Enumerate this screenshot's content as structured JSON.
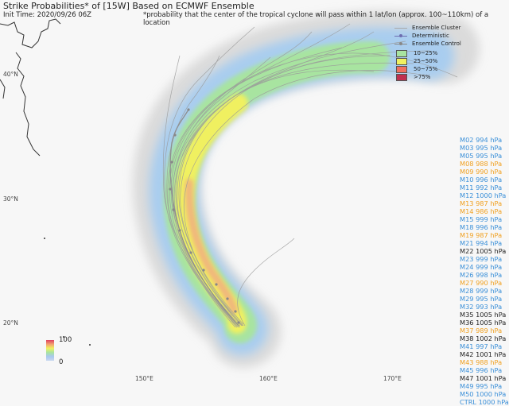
{
  "title": "Strike Probabilities* of [15W] Based on ECMWF Ensemble",
  "init_time": "Init Time: 2020/09/26 06Z",
  "footnote": "*probability that the center of the tropical cyclone will pass within 1 lat/lon (approx. 100~110km) of a location",
  "lat_labels": [
    "40°N",
    "30°N",
    "20°N"
  ],
  "lon_labels": [
    "150°E",
    "160°E",
    "170°E"
  ],
  "legend": {
    "lines": [
      "Ensemble Cluster",
      "Deterministic",
      "Ensemble Control"
    ],
    "bins": [
      {
        "label": "10~25%",
        "color": "#a8e4a0"
      },
      {
        "label": "25~50%",
        "color": "#f0f060"
      },
      {
        "label": "50~75%",
        "color": "#f07060"
      },
      {
        "label": ">75%",
        "color": "#c03050"
      }
    ]
  },
  "colorbar": {
    "max": "100",
    "min": "0"
  },
  "members": [
    {
      "text": "M02 994 hPa",
      "color": "#3a8fd8"
    },
    {
      "text": "M03 995 hPa",
      "color": "#3a8fd8"
    },
    {
      "text": "M05 995 hPa",
      "color": "#3a8fd8"
    },
    {
      "text": "M08 988 hPa",
      "color": "#f0a020"
    },
    {
      "text": "M09 990 hPa",
      "color": "#f0a020"
    },
    {
      "text": "M10 996 hPa",
      "color": "#3a8fd8"
    },
    {
      "text": "M11 992 hPa",
      "color": "#3a8fd8"
    },
    {
      "text": "M12 1000 hPa",
      "color": "#3a8fd8"
    },
    {
      "text": "M13 987 hPa",
      "color": "#f0a020"
    },
    {
      "text": "M14 986 hPa",
      "color": "#f0a020"
    },
    {
      "text": "M15 999 hPa",
      "color": "#3a8fd8"
    },
    {
      "text": "M18 996 hPa",
      "color": "#3a8fd8"
    },
    {
      "text": "M19 987 hPa",
      "color": "#f0a020"
    },
    {
      "text": "M21 994 hPa",
      "color": "#3a8fd8"
    },
    {
      "text": "M22 1005 hPa",
      "color": "#222222"
    },
    {
      "text": "M23 999 hPa",
      "color": "#3a8fd8"
    },
    {
      "text": "M24 999 hPa",
      "color": "#3a8fd8"
    },
    {
      "text": "M26 998 hPa",
      "color": "#3a8fd8"
    },
    {
      "text": "M27 990 hPa",
      "color": "#f0a020"
    },
    {
      "text": "M28 999 hPa",
      "color": "#3a8fd8"
    },
    {
      "text": "M29 995 hPa",
      "color": "#3a8fd8"
    },
    {
      "text": "M32 993 hPa",
      "color": "#3a8fd8"
    },
    {
      "text": "M35 1005 hPa",
      "color": "#222222"
    },
    {
      "text": "M36 1005 hPa",
      "color": "#222222"
    },
    {
      "text": "M37 989 hPa",
      "color": "#f0a020"
    },
    {
      "text": "M38 1002 hPa",
      "color": "#222222"
    },
    {
      "text": "M41 997 hPa",
      "color": "#3a8fd8"
    },
    {
      "text": "M42 1001 hPa",
      "color": "#222222"
    },
    {
      "text": "M43 988 hPa",
      "color": "#f0a020"
    },
    {
      "text": "M45 996 hPa",
      "color": "#3a8fd8"
    },
    {
      "text": "M47 1001 hPa",
      "color": "#222222"
    },
    {
      "text": "M49 995 hPa",
      "color": "#3a8fd8"
    },
    {
      "text": "M50 1000 hPa",
      "color": "#3a8fd8"
    },
    {
      "text": "CTRL 1000 hPa",
      "color": "#3a8fd8"
    }
  ]
}
